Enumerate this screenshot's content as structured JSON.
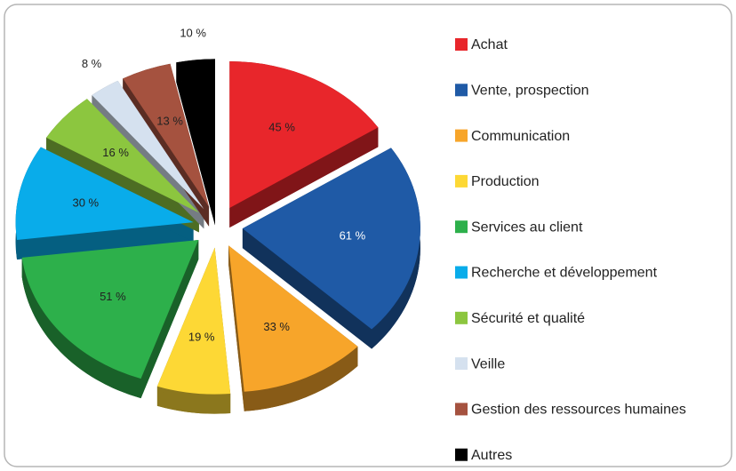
{
  "chart_data": {
    "type": "pie",
    "categories": [
      "Achat",
      "Vente, prospection",
      "Communication",
      "Production",
      "Services au client",
      "Recherche et développement",
      "Sécurité et qualité",
      "Veille",
      "Gestion des ressources humaines",
      "Autres"
    ],
    "values": [
      45,
      61,
      33,
      19,
      51,
      30,
      16,
      8,
      13,
      10
    ],
    "value_labels": [
      "45 %",
      "61 %",
      "33 %",
      "19 %",
      "51 %",
      "30 %",
      "16 %",
      "8 %",
      "13 %",
      "10 %"
    ],
    "colors": [
      "#e8262b",
      "#1f5aa6",
      "#f7a52a",
      "#fdd835",
      "#2db04b",
      "#09acea",
      "#8cc63f",
      "#d5e1ef",
      "#a5523f",
      "#000000"
    ],
    "legend": "right"
  }
}
